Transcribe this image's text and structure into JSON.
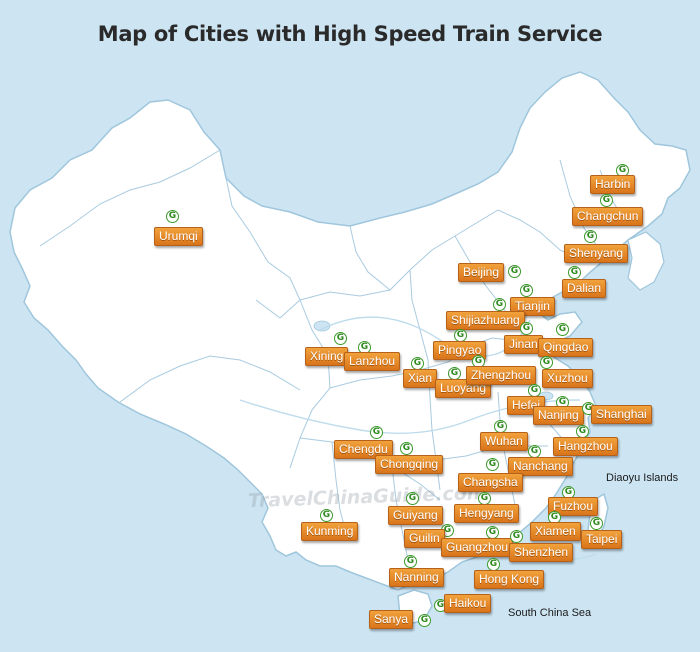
{
  "title": "Map of Cities with High Speed Train Service",
  "pin_glyph": "G",
  "watermark": "TravelChinaGuide.com",
  "colors": {
    "water": "#cde5f3",
    "land": "#ffffff",
    "border": "#9fc6dc",
    "label_bg": "#e88c2a",
    "pin": "#3a9a2a"
  },
  "cities": [
    {
      "name": "Harbin"
    },
    {
      "name": "Changchun"
    },
    {
      "name": "Shenyang"
    },
    {
      "name": "Dalian"
    },
    {
      "name": "Urumqi"
    },
    {
      "name": "Beijing"
    },
    {
      "name": "Tianjin"
    },
    {
      "name": "Shijiazhuang"
    },
    {
      "name": "Jinan"
    },
    {
      "name": "Qingdao"
    },
    {
      "name": "Pingyao"
    },
    {
      "name": "Xining"
    },
    {
      "name": "Lanzhou"
    },
    {
      "name": "Xian"
    },
    {
      "name": "Luoyang"
    },
    {
      "name": "Zhengzhou"
    },
    {
      "name": "Xuzhou"
    },
    {
      "name": "Hefei"
    },
    {
      "name": "Nanjing"
    },
    {
      "name": "Shanghai"
    },
    {
      "name": "Wuhan"
    },
    {
      "name": "Hangzhou"
    },
    {
      "name": "Chengdu"
    },
    {
      "name": "Chongqing"
    },
    {
      "name": "Nanchang"
    },
    {
      "name": "Changsha"
    },
    {
      "name": "Hengyang"
    },
    {
      "name": "Fuzhou"
    },
    {
      "name": "Guiyang"
    },
    {
      "name": "Xiamen"
    },
    {
      "name": "Taipei"
    },
    {
      "name": "Kunming"
    },
    {
      "name": "Guilin"
    },
    {
      "name": "Guangzhou"
    },
    {
      "name": "Shenzhen"
    },
    {
      "name": "Nanning"
    },
    {
      "name": "Hong Kong"
    },
    {
      "name": "Haikou"
    },
    {
      "name": "Sanya"
    }
  ],
  "regions": [
    "Diaoyu Islands",
    "South China Sea"
  ]
}
